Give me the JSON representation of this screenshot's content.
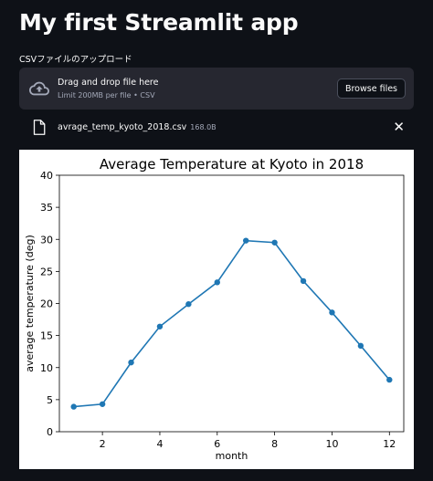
{
  "page": {
    "title": "My first Streamlit app"
  },
  "uploader": {
    "label": "CSVファイルのアップロード",
    "drop_title": "Drag and drop file here",
    "drop_subtitle": "Limit 200MB per file • CSV",
    "browse_label": "Browse files",
    "icon": "cloud-upload-icon"
  },
  "uploaded_file": {
    "name": "avrage_temp_kyoto_2018.csv",
    "size": "168.0B",
    "remove_label": "✕",
    "icon": "file-icon"
  },
  "chart_data": {
    "type": "line",
    "title": "Average Temperature at Kyoto in 2018",
    "xlabel": "month",
    "ylabel": "average temperature (deg)",
    "x": [
      1,
      2,
      3,
      4,
      5,
      6,
      7,
      8,
      9,
      10,
      11,
      12
    ],
    "y": [
      3.9,
      4.3,
      10.8,
      16.4,
      19.9,
      23.3,
      29.8,
      29.5,
      23.5,
      18.6,
      13.4,
      8.1
    ],
    "xlim": [
      0.5,
      12.5
    ],
    "ylim": [
      0,
      40
    ],
    "xticks": [
      2,
      4,
      6,
      8,
      10,
      12
    ],
    "yticks": [
      0,
      5,
      10,
      15,
      20,
      25,
      30,
      35,
      40
    ],
    "grid": false,
    "color": "#1f77b4"
  },
  "colors": {
    "background": "#0e1117",
    "dropzone": "#262730",
    "text": "#fafafa",
    "muted": "#a3a8b8",
    "series": "#1f77b4"
  }
}
